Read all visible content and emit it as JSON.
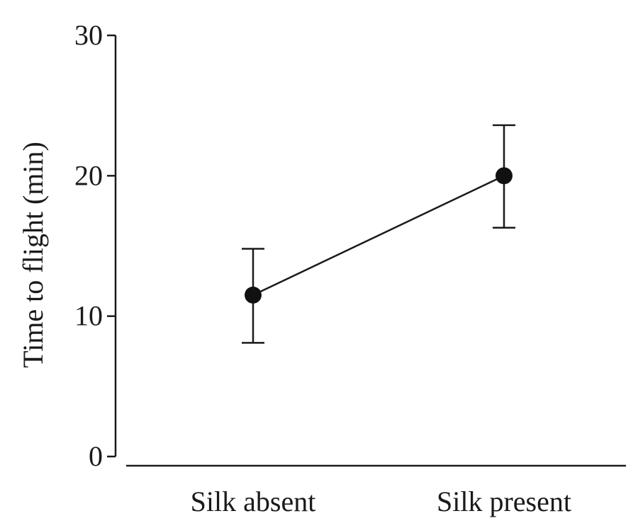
{
  "chart_data": {
    "type": "line",
    "title": "",
    "xlabel": "",
    "ylabel": "Time to flight (min)",
    "categories": [
      "Silk absent",
      "Silk present"
    ],
    "series": [
      {
        "name": "Time to flight",
        "values": [
          11.5,
          20.0
        ],
        "error_low": [
          8.1,
          16.3
        ],
        "error_high": [
          14.8,
          23.6
        ]
      }
    ],
    "ylim": [
      0,
      30
    ],
    "yticks": [
      0,
      10,
      20,
      30
    ],
    "ytick_labels": [
      "0",
      "10",
      "20",
      "30"
    ],
    "grid": false,
    "legend": "none",
    "colors": {
      "ink": "#1a1a1a",
      "marker": "#111111"
    }
  }
}
